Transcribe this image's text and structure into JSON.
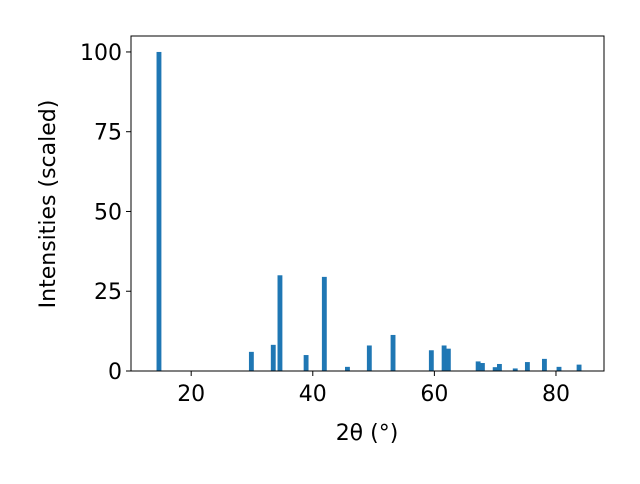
{
  "chart_data": {
    "type": "bar",
    "xlabel": "2θ (°)",
    "ylabel": "Intensities (scaled)",
    "x": [
      14.7,
      29.9,
      33.5,
      34.6,
      38.9,
      41.9,
      45.7,
      49.3,
      53.2,
      59.5,
      61.6,
      62.3,
      67.2,
      67.9,
      70.0,
      70.7,
      73.3,
      75.3,
      78.1,
      80.5,
      83.8
    ],
    "values": [
      100,
      6,
      8.2,
      30,
      5,
      29.5,
      1.3,
      8,
      11.3,
      6.5,
      8,
      7,
      3,
      2.5,
      1.2,
      2.2,
      0.8,
      2.8,
      3.8,
      1.3,
      2
    ],
    "color": "#1f77b4",
    "xlim": [
      10.1,
      87.9
    ],
    "ylim": [
      0,
      105
    ],
    "xticks": [
      20,
      40,
      60,
      80
    ],
    "yticks": [
      0,
      25,
      50,
      75,
      100
    ]
  }
}
